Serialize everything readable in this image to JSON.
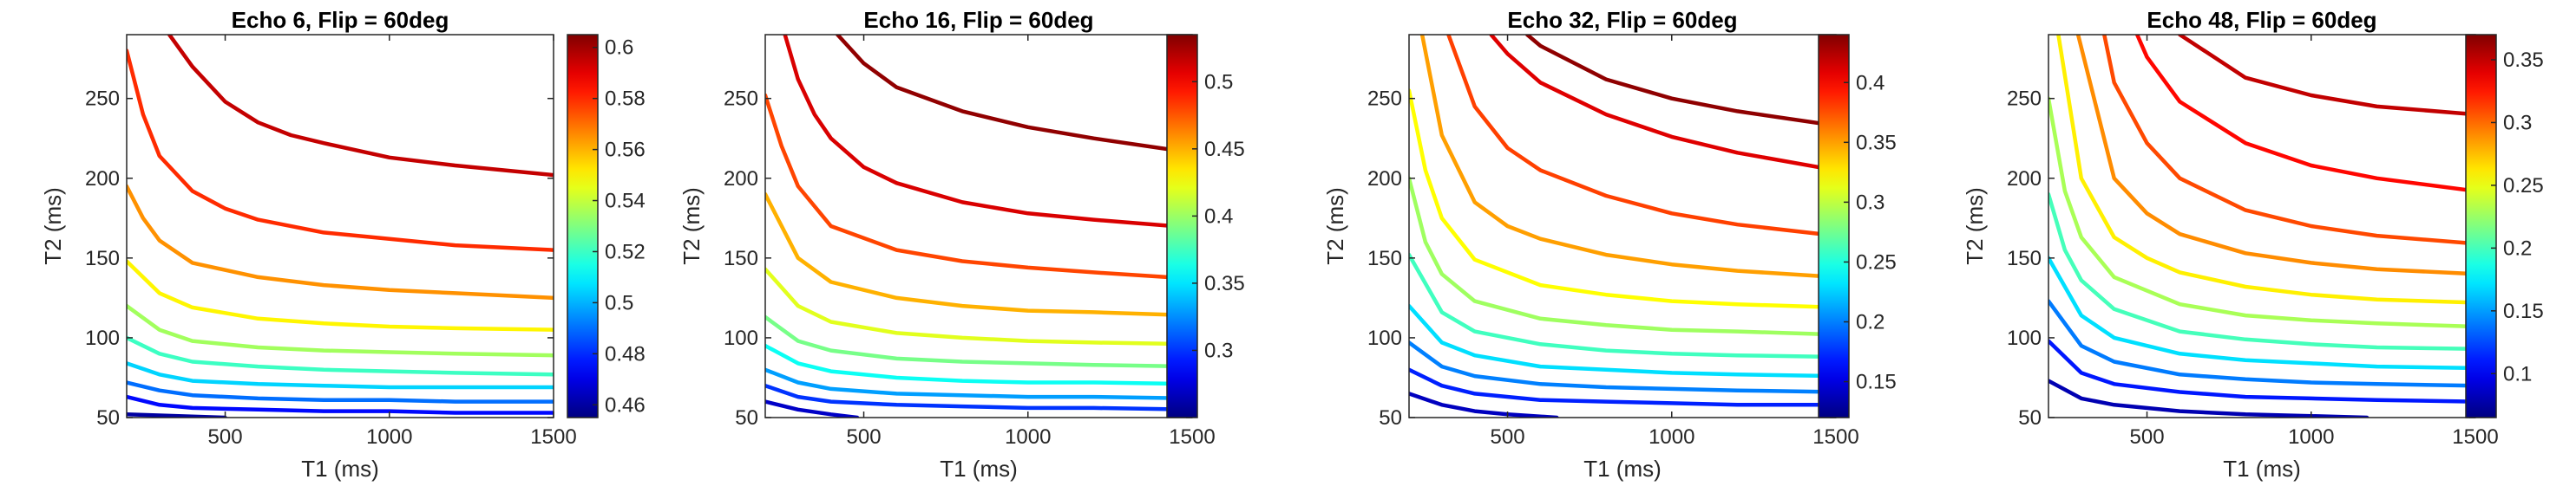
{
  "chart_data": [
    {
      "type": "line",
      "subtype": "contour",
      "title": "Echo 6, Flip = 60deg",
      "xlabel": "T1 (ms)",
      "ylabel": "T2 (ms)",
      "xlim": [
        200,
        1500
      ],
      "ylim": [
        50,
        290
      ],
      "xticks": [
        500,
        1000,
        1500
      ],
      "yticks": [
        50,
        100,
        150,
        200,
        250
      ],
      "colorbar": {
        "colormap": "jet",
        "range": [
          0.455,
          0.605
        ],
        "ticks": [
          0.46,
          0.48,
          0.5,
          0.52,
          0.54,
          0.56,
          0.58,
          0.6
        ]
      },
      "grid": false,
      "series": [
        {
          "level": 0.46,
          "x": [
            200,
            500
          ],
          "y": [
            52,
            50
          ]
        },
        {
          "level": 0.475,
          "x": [
            200,
            300,
            400,
            600,
            800,
            1000,
            1200,
            1500
          ],
          "y": [
            63,
            58,
            56,
            55,
            54,
            54,
            53,
            53
          ]
        },
        {
          "level": 0.49,
          "x": [
            200,
            300,
            400,
            600,
            800,
            1000,
            1200,
            1500
          ],
          "y": [
            72,
            67,
            64,
            62,
            61,
            61,
            60,
            60
          ]
        },
        {
          "level": 0.505,
          "x": [
            200,
            300,
            400,
            600,
            800,
            1000,
            1200,
            1500
          ],
          "y": [
            84,
            77,
            73,
            71,
            70,
            69,
            69,
            69
          ]
        },
        {
          "level": 0.52,
          "x": [
            200,
            300,
            400,
            600,
            800,
            1000,
            1200,
            1500
          ],
          "y": [
            100,
            90,
            85,
            82,
            80,
            79,
            78,
            77
          ]
        },
        {
          "level": 0.535,
          "x": [
            200,
            300,
            400,
            600,
            800,
            1000,
            1200,
            1500
          ],
          "y": [
            120,
            105,
            98,
            94,
            92,
            91,
            90,
            89
          ]
        },
        {
          "level": 0.55,
          "x": [
            200,
            300,
            400,
            600,
            800,
            1000,
            1200,
            1500
          ],
          "y": [
            148,
            128,
            119,
            112,
            109,
            107,
            106,
            105
          ]
        },
        {
          "level": 0.565,
          "x": [
            200,
            250,
            300,
            400,
            600,
            800,
            1000,
            1200,
            1500
          ],
          "y": [
            195,
            175,
            161,
            147,
            138,
            133,
            130,
            128,
            125
          ]
        },
        {
          "level": 0.58,
          "x": [
            200,
            250,
            300,
            400,
            500,
            600,
            800,
            1000,
            1200,
            1500
          ],
          "y": [
            280,
            240,
            214,
            192,
            181,
            174,
            166,
            162,
            158,
            155
          ]
        },
        {
          "level": 0.595,
          "x": [
            330,
            400,
            500,
            600,
            700,
            800,
            1000,
            1200,
            1500
          ],
          "y": [
            290,
            270,
            248,
            235,
            227,
            222,
            213,
            208,
            202
          ]
        }
      ]
    },
    {
      "type": "line",
      "subtype": "contour",
      "title": "Echo 16, Flip = 60deg",
      "xlabel": "T1 (ms)",
      "ylabel": "T2 (ms)",
      "xlim": [
        200,
        1500
      ],
      "ylim": [
        50,
        290
      ],
      "xticks": [
        500,
        1000,
        1500
      ],
      "yticks": [
        50,
        100,
        150,
        200,
        250
      ],
      "colorbar": {
        "colormap": "jet",
        "range": [
          0.25,
          0.535
        ],
        "ticks": [
          0.3,
          0.35,
          0.4,
          0.45,
          0.5
        ]
      },
      "grid": false,
      "series": [
        {
          "level": 0.27,
          "x": [
            200,
            300,
            400,
            480
          ],
          "y": [
            60,
            55,
            52,
            50
          ]
        },
        {
          "level": 0.3,
          "x": [
            200,
            300,
            400,
            600,
            800,
            1000,
            1200,
            1500
          ],
          "y": [
            70,
            63,
            60,
            58,
            57,
            56,
            56,
            55
          ]
        },
        {
          "level": 0.33,
          "x": [
            200,
            300,
            400,
            600,
            800,
            1000,
            1200,
            1500
          ],
          "y": [
            80,
            72,
            68,
            65,
            64,
            63,
            63,
            62
          ]
        },
        {
          "level": 0.36,
          "x": [
            200,
            300,
            400,
            600,
            800,
            1000,
            1200,
            1500
          ],
          "y": [
            95,
            84,
            79,
            75,
            73,
            72,
            72,
            71
          ]
        },
        {
          "level": 0.39,
          "x": [
            200,
            300,
            400,
            600,
            800,
            1000,
            1200,
            1500
          ],
          "y": [
            113,
            98,
            92,
            87,
            85,
            84,
            83,
            82
          ]
        },
        {
          "level": 0.42,
          "x": [
            200,
            300,
            400,
            600,
            800,
            1000,
            1200,
            1500
          ],
          "y": [
            143,
            120,
            110,
            103,
            100,
            98,
            97,
            96
          ]
        },
        {
          "level": 0.45,
          "x": [
            200,
            300,
            400,
            600,
            800,
            1000,
            1200,
            1500
          ],
          "y": [
            190,
            150,
            135,
            125,
            120,
            117,
            116,
            114
          ]
        },
        {
          "level": 0.48,
          "x": [
            200,
            250,
            300,
            400,
            600,
            800,
            1000,
            1200,
            1500
          ],
          "y": [
            252,
            220,
            195,
            170,
            155,
            148,
            144,
            141,
            137
          ]
        },
        {
          "level": 0.51,
          "x": [
            260,
            300,
            350,
            400,
            500,
            600,
            800,
            1000,
            1200,
            1500
          ],
          "y": [
            290,
            262,
            240,
            225,
            207,
            197,
            185,
            178,
            174,
            169
          ]
        },
        {
          "level": 0.53,
          "x": [
            420,
            500,
            600,
            800,
            1000,
            1200,
            1500
          ],
          "y": [
            290,
            272,
            257,
            242,
            232,
            225,
            216
          ]
        }
      ]
    },
    {
      "type": "line",
      "subtype": "contour",
      "title": "Echo 32, Flip = 60deg",
      "xlabel": "T1 (ms)",
      "ylabel": "T2 (ms)",
      "xlim": [
        200,
        1500
      ],
      "ylim": [
        50,
        290
      ],
      "xticks": [
        500,
        1000,
        1500
      ],
      "yticks": [
        50,
        100,
        150,
        200,
        250
      ],
      "colorbar": {
        "colormap": "jet",
        "range": [
          0.12,
          0.44
        ],
        "ticks": [
          0.15,
          0.2,
          0.25,
          0.3,
          0.35,
          0.4
        ]
      },
      "grid": false,
      "series": [
        {
          "level": 0.14,
          "x": [
            200,
            300,
            400,
            500,
            650
          ],
          "y": [
            65,
            58,
            54,
            52,
            50
          ]
        },
        {
          "level": 0.17,
          "x": [
            200,
            300,
            400,
            600,
            800,
            1000,
            1200,
            1500
          ],
          "y": [
            80,
            70,
            65,
            61,
            60,
            59,
            58,
            58
          ]
        },
        {
          "level": 0.2,
          "x": [
            200,
            300,
            400,
            600,
            800,
            1000,
            1200,
            1500
          ],
          "y": [
            97,
            82,
            76,
            71,
            69,
            68,
            67,
            66
          ]
        },
        {
          "level": 0.23,
          "x": [
            200,
            300,
            400,
            600,
            800,
            1000,
            1200,
            1500
          ],
          "y": [
            120,
            97,
            89,
            82,
            80,
            78,
            77,
            76
          ]
        },
        {
          "level": 0.26,
          "x": [
            200,
            300,
            400,
            600,
            800,
            1000,
            1200,
            1500
          ],
          "y": [
            152,
            116,
            104,
            96,
            92,
            90,
            89,
            88
          ]
        },
        {
          "level": 0.29,
          "x": [
            200,
            250,
            300,
            400,
            600,
            800,
            1000,
            1200,
            1500
          ],
          "y": [
            200,
            160,
            140,
            123,
            112,
            108,
            105,
            104,
            102
          ]
        },
        {
          "level": 0.32,
          "x": [
            200,
            250,
            300,
            400,
            600,
            800,
            1000,
            1200,
            1500
          ],
          "y": [
            255,
            205,
            175,
            149,
            133,
            127,
            123,
            121,
            119
          ]
        },
        {
          "level": 0.35,
          "x": [
            240,
            300,
            400,
            500,
            600,
            800,
            1000,
            1200,
            1500
          ],
          "y": [
            290,
            227,
            185,
            170,
            162,
            152,
            146,
            142,
            138
          ]
        },
        {
          "level": 0.38,
          "x": [
            320,
            400,
            500,
            600,
            800,
            1000,
            1200,
            1500
          ],
          "y": [
            290,
            245,
            219,
            205,
            189,
            178,
            171,
            164
          ]
        },
        {
          "level": 0.41,
          "x": [
            450,
            500,
            600,
            800,
            1000,
            1200,
            1500
          ],
          "y": [
            290,
            278,
            260,
            240,
            226,
            216,
            205
          ]
        },
        {
          "level": 0.435,
          "x": [
            560,
            600,
            800,
            1000,
            1200,
            1500
          ],
          "y": [
            290,
            283,
            262,
            250,
            242,
            233
          ]
        }
      ]
    },
    {
      "type": "line",
      "subtype": "contour",
      "title": "Echo 48, Flip = 60deg",
      "xlabel": "T1 (ms)",
      "ylabel": "T2 (ms)",
      "xlim": [
        200,
        1500
      ],
      "ylim": [
        50,
        290
      ],
      "xticks": [
        500,
        1000,
        1500
      ],
      "yticks": [
        50,
        100,
        150,
        200,
        250
      ],
      "colorbar": {
        "colormap": "jet",
        "range": [
          0.065,
          0.37
        ],
        "ticks": [
          0.1,
          0.15,
          0.2,
          0.25,
          0.3,
          0.35
        ]
      },
      "grid": false,
      "series": [
        {
          "level": 0.08,
          "x": [
            200,
            300,
            400,
            600,
            800,
            1000,
            1170
          ],
          "y": [
            73,
            62,
            58,
            54,
            52,
            51,
            50
          ]
        },
        {
          "level": 0.11,
          "x": [
            200,
            300,
            400,
            600,
            800,
            1000,
            1200,
            1500
          ],
          "y": [
            98,
            78,
            71,
            66,
            63,
            62,
            61,
            60
          ]
        },
        {
          "level": 0.14,
          "x": [
            200,
            300,
            400,
            600,
            800,
            1000,
            1200,
            1500
          ],
          "y": [
            123,
            95,
            85,
            77,
            74,
            72,
            71,
            70
          ]
        },
        {
          "level": 0.17,
          "x": [
            200,
            300,
            400,
            600,
            800,
            1000,
            1200,
            1500
          ],
          "y": [
            150,
            114,
            100,
            90,
            86,
            84,
            82,
            81
          ]
        },
        {
          "level": 0.2,
          "x": [
            200,
            250,
            300,
            400,
            600,
            800,
            1000,
            1200,
            1500
          ],
          "y": [
            190,
            155,
            136,
            118,
            104,
            99,
            96,
            94,
            93
          ]
        },
        {
          "level": 0.23,
          "x": [
            200,
            250,
            300,
            400,
            600,
            800,
            1000,
            1200,
            1500
          ],
          "y": [
            250,
            192,
            163,
            138,
            121,
            114,
            111,
            109,
            107
          ]
        },
        {
          "level": 0.26,
          "x": [
            230,
            300,
            400,
            500,
            600,
            800,
            1000,
            1200,
            1500
          ],
          "y": [
            290,
            200,
            163,
            150,
            141,
            132,
            127,
            124,
            122
          ]
        },
        {
          "level": 0.29,
          "x": [
            290,
            400,
            500,
            600,
            800,
            1000,
            1200,
            1500
          ],
          "y": [
            290,
            200,
            178,
            165,
            153,
            147,
            143,
            140
          ]
        },
        {
          "level": 0.31,
          "x": [
            370,
            400,
            500,
            600,
            800,
            1000,
            1200,
            1500
          ],
          "y": [
            290,
            260,
            222,
            200,
            180,
            170,
            164,
            159
          ]
        },
        {
          "level": 0.33,
          "x": [
            470,
            500,
            600,
            800,
            1000,
            1200,
            1500
          ],
          "y": [
            290,
            276,
            248,
            222,
            208,
            200,
            192
          ]
        },
        {
          "level": 0.35,
          "x": [
            600,
            800,
            1000,
            1200,
            1500
          ],
          "y": [
            290,
            263,
            252,
            245,
            240
          ]
        }
      ]
    }
  ]
}
